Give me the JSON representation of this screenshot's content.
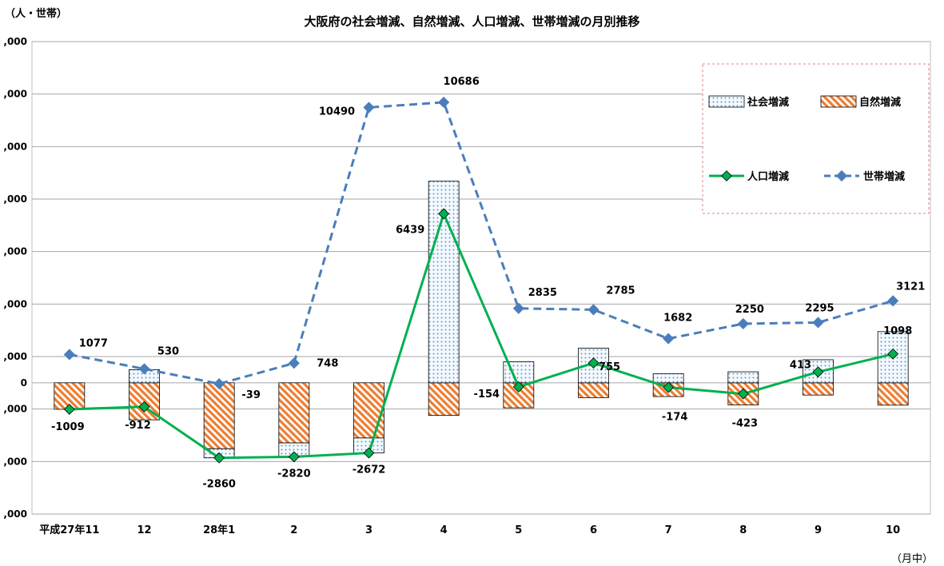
{
  "chart_data": {
    "type": "bar",
    "title": "大阪府の社会増減、自然増減、人口増減、世帯増減の月別推移",
    "ylabel": "（人・世帯）",
    "xlabel": "（月中）",
    "categories": [
      "平成27年11",
      "12",
      "28年1",
      "2",
      "3",
      "4",
      "5",
      "6",
      "7",
      "8",
      "9",
      "10"
    ],
    "ylim": [
      -5000,
      13000
    ],
    "y_ticks": [
      -5000,
      -3000,
      -1000,
      0,
      1000,
      3000,
      5000,
      7000,
      9000,
      11000,
      13000
    ],
    "y_tick_labels": [
      ",000",
      ",000",
      ",000",
      "0",
      ",000",
      ",000",
      ",000",
      ",000",
      ",000",
      ",000",
      ",000"
    ],
    "grid": true,
    "legend_position": "top-right",
    "series": [
      {
        "name": "社会増減",
        "kind": "bar",
        "values": [
          0,
          500,
          -350,
          -530,
          -570,
          7680,
          800,
          1320,
          350,
          420,
          880,
          1950
        ],
        "color": "#5b9bd5",
        "pattern": "dots"
      },
      {
        "name": "自然増減",
        "kind": "bar",
        "values": [
          -1009,
          -1412,
          -2510,
          -2290,
          -2102,
          -1241,
          -954,
          -565,
          -524,
          -843,
          -467,
          -852
        ],
        "color": "#ed7d31",
        "pattern": "stripes"
      },
      {
        "name": "人口増減",
        "kind": "line",
        "values": [
          -1009,
          -912,
          -2860,
          -2820,
          -2672,
          6439,
          -154,
          755,
          -174,
          -423,
          413,
          1098
        ],
        "color": "#00b050"
      },
      {
        "name": "世帯増減",
        "kind": "line",
        "values": [
          1077,
          530,
          -39,
          748,
          10490,
          10686,
          2835,
          2785,
          1682,
          2250,
          2295,
          3121
        ],
        "color": "#4a7ebb"
      }
    ],
    "labels": {
      "population": [
        "-1009",
        "-912",
        "-2860",
        "-2820",
        "-2672",
        "6439",
        "-154",
        "755",
        "-174",
        "-423",
        "413",
        "1098"
      ],
      "households": [
        "1077",
        "530",
        "-39",
        "748",
        "10490",
        "10686",
        "2835",
        "2785",
        "1682",
        "2250",
        "2295",
        "3121"
      ]
    }
  }
}
